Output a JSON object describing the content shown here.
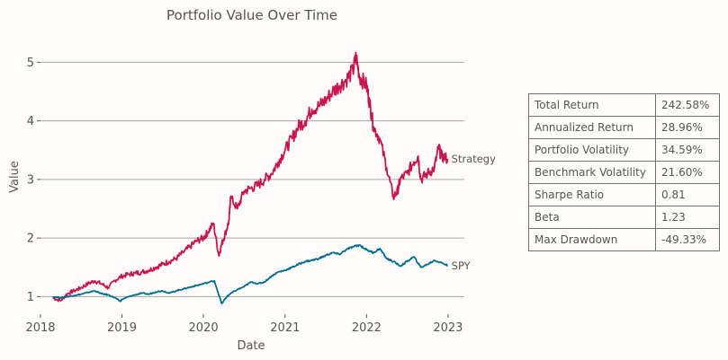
{
  "chart_data": {
    "type": "line",
    "title": "Portfolio Value Over Time",
    "xlabel": "Date",
    "ylabel": "Value",
    "xlim": [
      "2018-01-01",
      "2023-03-15"
    ],
    "ylim": [
      0.7,
      5.45
    ],
    "x_ticks": [
      "2018",
      "2019",
      "2020",
      "2021",
      "2022",
      "2023"
    ],
    "y_ticks": [
      "1",
      "2",
      "3",
      "4",
      "5"
    ],
    "grid": "horizontal",
    "legend": "none (series labeled at line ends)",
    "series": [
      {
        "name": "Strategy",
        "color": "#c8174f",
        "x": [
          "2018-02-25",
          "2018-04-01",
          "2018-05-01",
          "2018-06-01",
          "2018-07-01",
          "2018-08-01",
          "2018-09-01",
          "2018-10-01",
          "2018-11-01",
          "2018-12-01",
          "2019-01-01",
          "2019-02-01",
          "2019-03-01",
          "2019-04-01",
          "2019-05-01",
          "2019-06-01",
          "2019-07-01",
          "2019-08-01",
          "2019-09-01",
          "2019-10-01",
          "2019-11-01",
          "2019-12-01",
          "2020-01-01",
          "2020-01-20",
          "2020-02-15",
          "2020-03-10",
          "2020-03-23",
          "2020-04-10",
          "2020-04-25",
          "2020-05-01",
          "2020-06-01",
          "2020-07-01",
          "2020-08-01",
          "2020-09-01",
          "2020-10-01",
          "2020-11-01",
          "2020-12-01",
          "2021-01-01",
          "2021-02-01",
          "2021-03-01",
          "2021-04-01",
          "2021-05-01",
          "2021-06-01",
          "2021-07-01",
          "2021-08-01",
          "2021-09-01",
          "2021-10-01",
          "2021-11-01",
          "2021-11-15",
          "2021-12-01",
          "2022-01-01",
          "2022-01-15",
          "2022-02-01",
          "2022-03-01",
          "2022-04-01",
          "2022-05-01",
          "2022-05-20",
          "2022-06-01",
          "2022-07-01",
          "2022-08-01",
          "2022-08-20",
          "2022-09-01",
          "2022-10-01",
          "2022-11-01",
          "2022-11-20",
          "2022-12-01",
          "2022-12-31"
        ],
        "values": [
          0.98,
          0.93,
          1.05,
          1.1,
          1.15,
          1.22,
          1.27,
          1.22,
          1.15,
          1.28,
          1.35,
          1.38,
          1.4,
          1.42,
          1.45,
          1.5,
          1.55,
          1.6,
          1.65,
          1.75,
          1.85,
          1.95,
          2.0,
          2.1,
          2.25,
          1.7,
          1.9,
          2.1,
          2.3,
          2.7,
          2.5,
          2.8,
          2.85,
          2.9,
          3.0,
          3.1,
          3.3,
          3.5,
          3.7,
          3.9,
          4.0,
          4.2,
          4.25,
          4.35,
          4.5,
          4.6,
          4.7,
          4.85,
          5.1,
          4.75,
          4.6,
          4.3,
          3.9,
          3.7,
          3.2,
          2.7,
          2.8,
          3.0,
          3.1,
          3.3,
          3.4,
          3.0,
          3.1,
          3.2,
          3.55,
          3.4,
          3.35
        ]
      },
      {
        "name": "SPY",
        "color": "#006e94",
        "x": [
          "2018-02-25",
          "2018-04-01",
          "2018-05-01",
          "2018-06-01",
          "2018-07-01",
          "2018-08-01",
          "2018-09-01",
          "2018-10-01",
          "2018-11-01",
          "2018-12-01",
          "2018-12-24",
          "2019-01-01",
          "2019-02-01",
          "2019-03-01",
          "2019-04-01",
          "2019-05-01",
          "2019-06-01",
          "2019-07-01",
          "2019-08-01",
          "2019-09-01",
          "2019-10-01",
          "2019-11-01",
          "2019-12-01",
          "2020-01-01",
          "2020-02-19",
          "2020-03-23",
          "2020-04-15",
          "2020-05-01",
          "2020-06-01",
          "2020-07-01",
          "2020-08-01",
          "2020-09-01",
          "2020-10-01",
          "2020-11-01",
          "2020-12-01",
          "2021-01-01",
          "2021-02-01",
          "2021-03-01",
          "2021-04-01",
          "2021-05-01",
          "2021-06-01",
          "2021-07-01",
          "2021-08-01",
          "2021-09-01",
          "2021-10-01",
          "2021-11-01",
          "2021-12-01",
          "2022-01-01",
          "2022-02-01",
          "2022-03-01",
          "2022-04-01",
          "2022-05-01",
          "2022-06-01",
          "2022-07-01",
          "2022-08-01",
          "2022-09-01",
          "2022-10-01",
          "2022-11-01",
          "2022-12-01",
          "2022-12-31"
        ],
        "values": [
          1.0,
          0.98,
          1.0,
          1.02,
          1.04,
          1.07,
          1.1,
          1.05,
          1.03,
          0.98,
          0.92,
          0.95,
          1.0,
          1.03,
          1.06,
          1.04,
          1.08,
          1.1,
          1.06,
          1.1,
          1.13,
          1.16,
          1.19,
          1.22,
          1.27,
          0.88,
          1.0,
          1.05,
          1.12,
          1.17,
          1.25,
          1.22,
          1.25,
          1.35,
          1.42,
          1.45,
          1.5,
          1.55,
          1.6,
          1.62,
          1.65,
          1.7,
          1.75,
          1.72,
          1.8,
          1.85,
          1.88,
          1.8,
          1.75,
          1.82,
          1.65,
          1.6,
          1.52,
          1.6,
          1.68,
          1.5,
          1.55,
          1.62,
          1.58,
          1.53
        ]
      }
    ]
  },
  "stats_table": {
    "rows": [
      {
        "metric": "Total Return",
        "value": "242.58%"
      },
      {
        "metric": "Annualized Return",
        "value": "28.96%"
      },
      {
        "metric": "Portfolio Volatility",
        "value": "34.59%"
      },
      {
        "metric": "Benchmark Volatility",
        "value": "21.60%"
      },
      {
        "metric": "Sharpe Ratio",
        "value": "0.81"
      },
      {
        "metric": "Beta",
        "value": "1.23"
      },
      {
        "metric": "Max Drawdown",
        "value": "-49.33%"
      }
    ]
  }
}
